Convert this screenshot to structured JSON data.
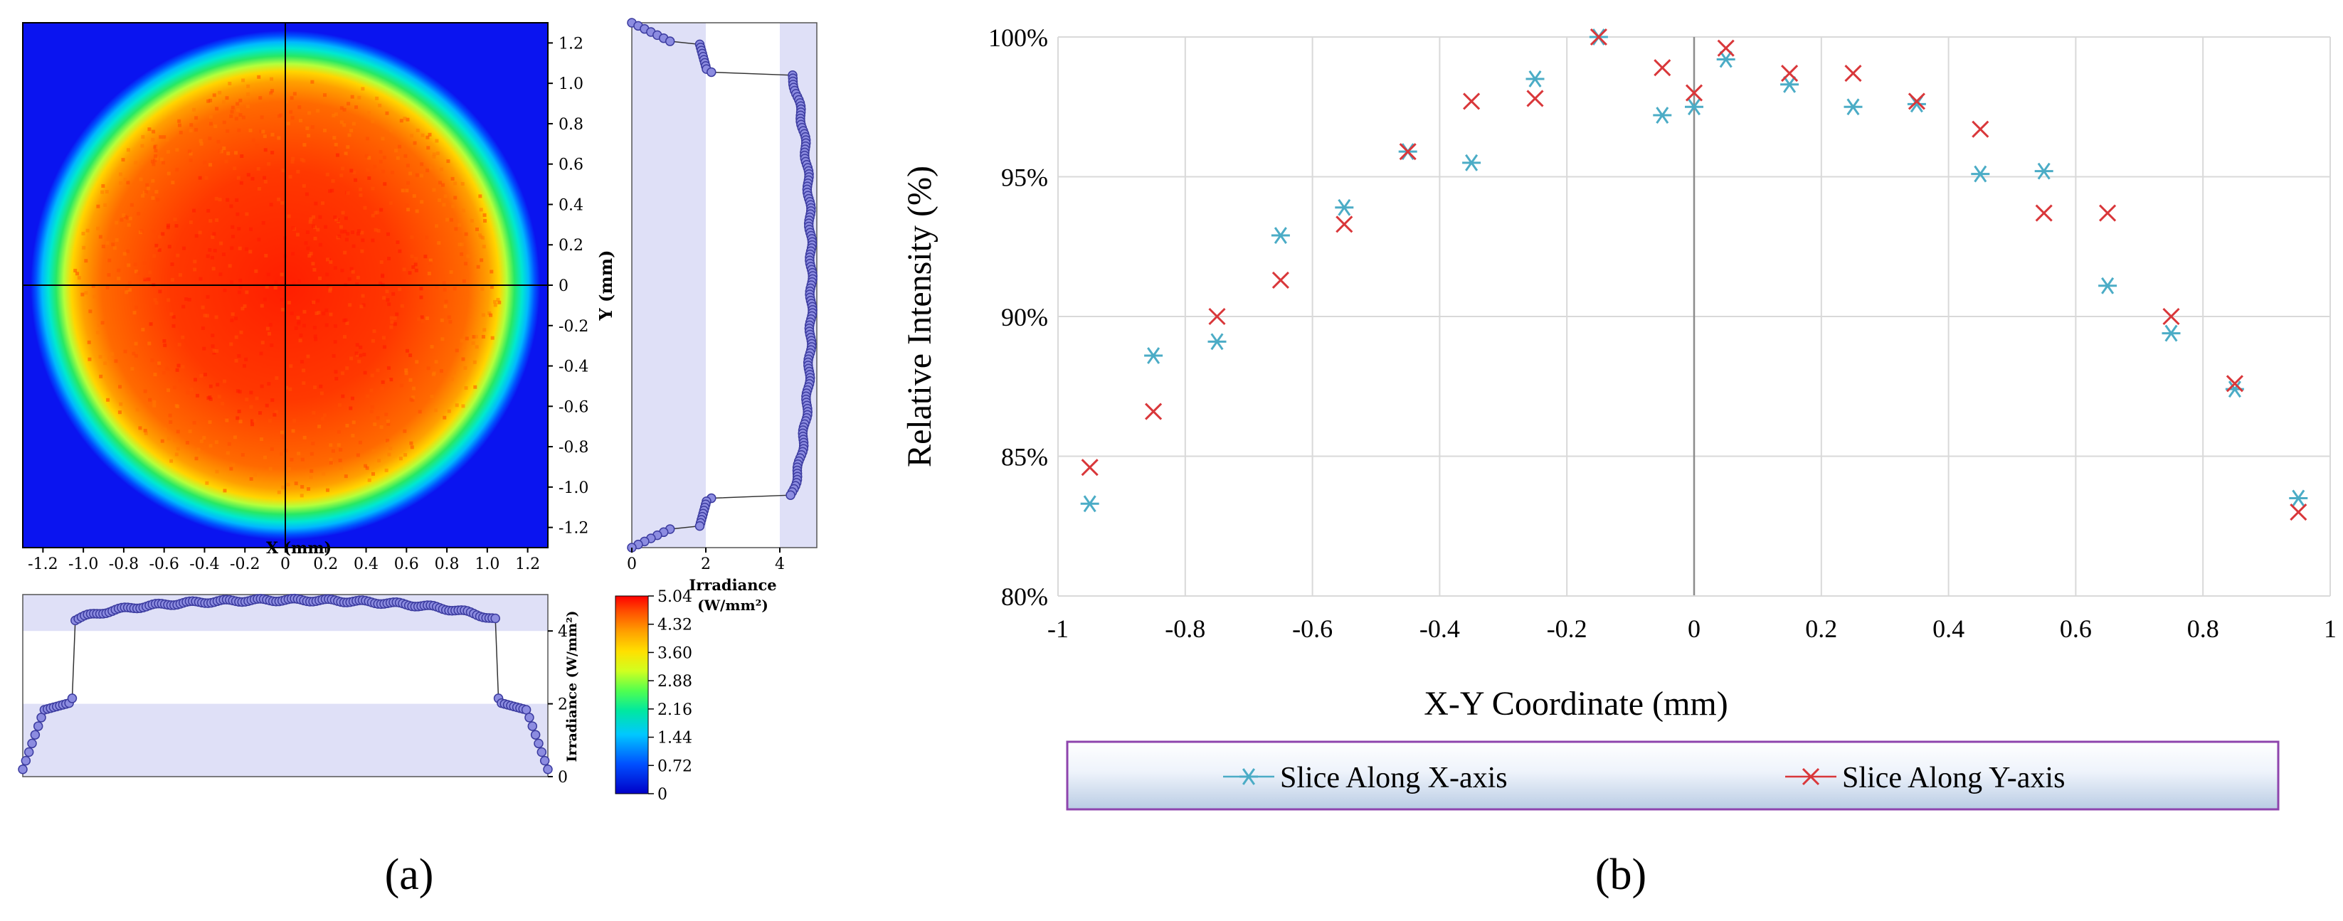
{
  "panel_labels": [
    "(a)",
    "(b)"
  ],
  "colors": {
    "x_series": "#4bacc6",
    "y_series": "#d9373a",
    "map_background": "#0a14f0",
    "profile_marker": "#8c8ce0",
    "profile_marker_edge": "#3c3ca0",
    "shaded_band": "#dfe0f7",
    "legend_border": "#8e44ad"
  },
  "chart_data": [
    {
      "id": "panel-a-map",
      "type": "heatmap",
      "description_shape": "circular top-hat spot, radius ~1.05 mm",
      "xlabel": "X (mm)",
      "ylabel": "Y (mm)",
      "xlim": [
        -1.3,
        1.3
      ],
      "ylim": [
        -1.3,
        1.3
      ],
      "x_ticks": [
        "-1.2",
        "-1.0",
        "-0.8",
        "-0.6",
        "-0.4",
        "-0.2",
        "0",
        "0.2",
        "0.4",
        "0.6",
        "0.8",
        "1.0",
        "1.2"
      ],
      "y_ticks": [
        "1.2",
        "1.0",
        "0.8",
        "0.6",
        "0.4",
        "0.2",
        "0",
        "-0.2",
        "-0.4",
        "-0.6",
        "-0.8",
        "-1.0",
        "-1.2"
      ],
      "colorbar": {
        "title": "Irradiance",
        "unit": "(W/mm²)",
        "ticks": [
          "5.04",
          "4.32",
          "3.60",
          "2.88",
          "2.16",
          "1.44",
          "0.72",
          "0"
        ],
        "range": [
          0,
          5.04
        ]
      }
    },
    {
      "id": "panel-a-vertical-profile",
      "type": "line",
      "xlabel": "Irradiance (W/mm²)",
      "x_ticks": [
        "0",
        "2",
        "4"
      ],
      "xlim": [
        0,
        5
      ],
      "y_ticks": [
        "1.2",
        "1.0",
        "0.8",
        "0.6",
        "0.4",
        "0.2",
        "0",
        "-0.2",
        "-0.4",
        "-0.6",
        "-0.8",
        "-1.0",
        "-1.2"
      ],
      "ylim": [
        -1.3,
        1.3
      ],
      "bands": [
        [
          0,
          2
        ],
        [
          4,
          5
        ]
      ],
      "profile": {
        "top_flat": 4.5,
        "edge_pos": 1.05,
        "edge_low": 2.05,
        "outer_start": 1.2,
        "outer_end": 1.3
      }
    },
    {
      "id": "panel-a-horizontal-profile",
      "type": "line",
      "ylabel": "Irradiance (W/mm²)",
      "y_ticks": [
        "4",
        "2",
        "0"
      ],
      "ylim": [
        0,
        5
      ],
      "xlim": [
        -1.3,
        1.3
      ],
      "bands": [
        [
          2,
          4
        ]
      ],
      "profile": {
        "top_flat": 4.5,
        "edge_pos": 1.05,
        "edge_low": 2.05,
        "outer_start": 1.2,
        "outer_end": 0.2
      }
    },
    {
      "id": "panel-b",
      "type": "scatter",
      "xlabel": "X-Y Coordinate (mm)",
      "ylabel": "Relative Intensity (%)",
      "xlim": [
        -1,
        1
      ],
      "ylim": [
        80,
        100
      ],
      "x_ticks": [
        "-1",
        "-0.8",
        "-0.6",
        "-0.4",
        "-0.2",
        "0",
        "0.2",
        "0.4",
        "0.6",
        "0.8",
        "1"
      ],
      "y_ticks": [
        "100%",
        "95%",
        "90%",
        "85%",
        "80%"
      ],
      "grid": true,
      "legend_position": "bottom",
      "series": [
        {
          "name": "Slice Along X-axis",
          "marker": "asterisk",
          "points": [
            [
              -0.95,
              83.3
            ],
            [
              -0.85,
              88.6
            ],
            [
              -0.75,
              89.1
            ],
            [
              -0.65,
              92.9
            ],
            [
              -0.55,
              93.9
            ],
            [
              -0.45,
              95.9
            ],
            [
              -0.35,
              95.5
            ],
            [
              -0.25,
              98.5
            ],
            [
              -0.15,
              100.0
            ],
            [
              -0.05,
              97.2
            ],
            [
              0.0,
              97.5
            ],
            [
              0.05,
              99.2
            ],
            [
              0.15,
              98.3
            ],
            [
              0.25,
              97.5
            ],
            [
              0.35,
              97.6
            ],
            [
              0.45,
              95.1
            ],
            [
              0.55,
              95.2
            ],
            [
              0.65,
              91.1
            ],
            [
              0.75,
              89.4
            ],
            [
              0.85,
              87.4
            ],
            [
              0.95,
              83.5
            ]
          ]
        },
        {
          "name": "Slice Along Y-axis",
          "marker": "x",
          "points": [
            [
              -0.95,
              84.6
            ],
            [
              -0.85,
              86.6
            ],
            [
              -0.75,
              90.0
            ],
            [
              -0.65,
              91.3
            ],
            [
              -0.55,
              93.3
            ],
            [
              -0.45,
              95.9
            ],
            [
              -0.35,
              97.7
            ],
            [
              -0.25,
              97.8
            ],
            [
              -0.15,
              100.0
            ],
            [
              -0.05,
              98.9
            ],
            [
              0.0,
              98.0
            ],
            [
              0.05,
              99.6
            ],
            [
              0.15,
              98.7
            ],
            [
              0.25,
              98.7
            ],
            [
              0.35,
              97.7
            ],
            [
              0.45,
              96.7
            ],
            [
              0.55,
              93.7
            ],
            [
              0.65,
              93.7
            ],
            [
              0.75,
              90.0
            ],
            [
              0.85,
              87.6
            ],
            [
              0.95,
              83.0
            ]
          ]
        }
      ]
    }
  ]
}
